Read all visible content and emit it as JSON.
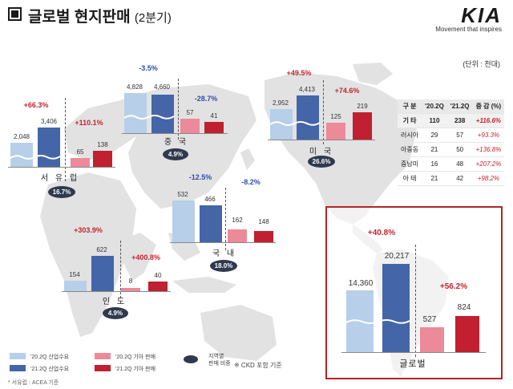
{
  "header": {
    "title": "글로벌 현지판매",
    "subtitle": "(2분기)"
  },
  "logo": {
    "mark": "KIA",
    "tagline": "Movement that inspires"
  },
  "unit_label": "(단위 : 천대)",
  "colors": {
    "ind20": "#b7cfe8",
    "ind21": "#4466a8",
    "kia20": "#ec8a99",
    "kia21": "#c0202f",
    "up": "#c4242e",
    "down": "#2f4fa8",
    "oval": "#2e3a4f"
  },
  "regions": {
    "europe": {
      "label": "서 유 럽",
      "share": "16.7%",
      "ind20": "2,048",
      "ind21": "3,406",
      "ind_change": "+66.3%",
      "kia20": "65",
      "kia21": "138",
      "kia_change": "+110.1%"
    },
    "china": {
      "label": "중 국",
      "share": "4.9%",
      "ind20": "4,828",
      "ind21": "4,660",
      "ind_change": "-3.5%",
      "kia20": "57",
      "kia21": "41",
      "kia_change": "-28.7%"
    },
    "usa": {
      "label": "미 국",
      "share": "26.6%",
      "ind20": "2,952",
      "ind21": "4,413",
      "ind_change": "+49.5%",
      "kia20": "125",
      "kia21": "219",
      "kia_change": "+74.6%"
    },
    "korea": {
      "label": "국 내",
      "share": "18.0%",
      "ind20": "532",
      "ind21": "466",
      "ind_change": "-12.5%",
      "kia20": "162",
      "kia21": "148",
      "kia_change": "-8.2%"
    },
    "india": {
      "label": "인 도",
      "share": "4.9%",
      "ind20": "154",
      "ind21": "622",
      "ind_change": "+303.9%",
      "kia20": "8",
      "kia21": "40",
      "kia_change": "+400.8%"
    },
    "global": {
      "label": "글로벌",
      "ind20": "14,360",
      "ind21": "20,217",
      "ind_change": "+40.8%",
      "kia20": "527",
      "kia21": "824",
      "kia_change": "+56.2%"
    }
  },
  "table": {
    "headers": [
      "구 분",
      "'20.2Q",
      "'21.2Q",
      "증 감 (%)"
    ],
    "rows": [
      [
        "기 타",
        "110",
        "238",
        "+116.6%"
      ],
      [
        "러시아",
        "29",
        "57",
        "+93.3%"
      ],
      [
        "아중동",
        "21",
        "50",
        "+136.8%"
      ],
      [
        "중남미",
        "16",
        "48",
        "+207.2%"
      ],
      [
        "아 태",
        "21",
        "42",
        "+98.2%"
      ]
    ]
  },
  "legend": {
    "ind20": "'20.2Q 산업수요",
    "ind21": "'21.2Q 산업수요",
    "kia20": "'20.2Q 기아 판매",
    "kia21": "'21.2Q 기아 판매",
    "share": "지역별\n판매 비중",
    "ckd": "※ CKD 포함 기준"
  },
  "footnote": "* 서유럽 : ACEA 기준"
}
